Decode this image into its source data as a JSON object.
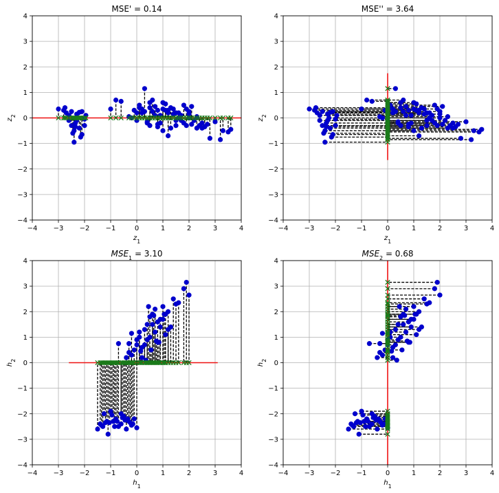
{
  "chart_data": [
    {
      "type": "scatter",
      "panel": "top-left",
      "title": "MSE' = 0.14",
      "xlabel": "z",
      "xlabel_sub": "1",
      "ylabel": "z",
      "ylabel_sub": "2",
      "xlim": [
        -4,
        4
      ],
      "ylim": [
        -4,
        4
      ],
      "xticks": [
        -4,
        -3,
        -2,
        -1,
        0,
        1,
        2,
        3,
        4
      ],
      "yticks": [
        -4,
        -3,
        -2,
        -1,
        0,
        1,
        2,
        3,
        4
      ],
      "grid": true,
      "projection": "horizontal",
      "line": {
        "x": [
          -4,
          4
        ],
        "y": [
          0,
          0
        ]
      },
      "points": {
        "x": [
          -3.0,
          -2.8,
          -2.7,
          -2.6,
          -2.5,
          -2.45,
          -2.4,
          -2.35,
          -2.3,
          -2.25,
          -2.2,
          -2.15,
          -2.1,
          -2.0,
          -1.95,
          -2.4,
          -2.5,
          -2.3,
          -2.2,
          -2.35,
          -2.6,
          -2.75,
          -2.1,
          -2.0,
          -1.0,
          -0.8,
          -0.6,
          -0.2,
          -0.1,
          0.0,
          0.1,
          0.2,
          0.3,
          0.4,
          0.5,
          0.6,
          0.7,
          0.8,
          0.9,
          1.0,
          1.1,
          1.2,
          1.3,
          1.4,
          1.5,
          1.6,
          1.7,
          1.8,
          1.9,
          2.0,
          2.1,
          2.2,
          2.3,
          2.4,
          2.5,
          2.6,
          2.7,
          2.8,
          3.0,
          3.2,
          3.3,
          3.5,
          3.6,
          0.3,
          0.5,
          0.7,
          0.9,
          1.1,
          1.3,
          1.5,
          1.7,
          1.9,
          2.1,
          2.3,
          0.2,
          0.4,
          0.6,
          0.8,
          1.0,
          1.2,
          1.4,
          1.6,
          1.8,
          2.0,
          0.1,
          0.5,
          1.0,
          1.5,
          2.0,
          2.5,
          -0.3,
          0.0,
          0.8,
          1.2
        ],
        "y": [
          0.35,
          0.3,
          0.2,
          0.1,
          -0.3,
          -0.6,
          -0.5,
          -0.2,
          -0.1,
          0.0,
          0.22,
          -0.75,
          -0.65,
          -0.05,
          0.1,
          -0.95,
          0.25,
          0.15,
          -0.4,
          -0.35,
          -0.1,
          0.4,
          0.25,
          -0.3,
          0.35,
          0.7,
          0.65,
          0.0,
          0.3,
          -0.1,
          0.4,
          0.2,
          1.15,
          -0.2,
          0.6,
          0.7,
          0.45,
          0.3,
          0.1,
          0.6,
          0.55,
          -0.7,
          0.4,
          0.35,
          -0.3,
          0.2,
          0.1,
          0.5,
          -0.3,
          0.0,
          0.45,
          -0.1,
          -0.4,
          -0.3,
          -0.2,
          -0.35,
          -0.25,
          -0.8,
          -0.15,
          -0.85,
          -0.5,
          -0.55,
          -0.45,
          0.25,
          0.4,
          0.1,
          -0.2,
          0.3,
          -0.4,
          0.2,
          -0.1,
          0.35,
          -0.25,
          0.05,
          0.35,
          -0.15,
          0.25,
          -0.35,
          -0.5,
          0.2,
          0.15,
          0.0,
          -0.2,
          0.15,
          0.5,
          -0.3,
          0.35,
          -0.1,
          0.25,
          -0.4,
          0.05,
          0.2,
          -0.25,
          0.3
        ]
      }
    },
    {
      "type": "scatter",
      "panel": "top-right",
      "title": "MSE'' = 3.64",
      "xlabel": "z",
      "xlabel_sub": "1",
      "ylabel": "z",
      "ylabel_sub": "2",
      "xlim": [
        -4,
        4
      ],
      "ylim": [
        -4,
        4
      ],
      "xticks": [
        -4,
        -3,
        -2,
        -1,
        0,
        1,
        2,
        3,
        4
      ],
      "yticks": [
        -4,
        -3,
        -2,
        -1,
        0,
        1,
        2,
        3,
        4
      ],
      "grid": true,
      "projection": "vertical",
      "line": {
        "x": [
          0,
          0
        ],
        "y": [
          -1.65,
          1.75
        ]
      },
      "points": {
        "x": [
          -3.0,
          -2.8,
          -2.7,
          -2.6,
          -2.5,
          -2.45,
          -2.4,
          -2.35,
          -2.3,
          -2.25,
          -2.2,
          -2.15,
          -2.1,
          -2.0,
          -1.95,
          -2.4,
          -2.5,
          -2.3,
          -2.2,
          -2.35,
          -2.6,
          -2.75,
          -2.1,
          -2.0,
          -1.0,
          -0.8,
          -0.6,
          -0.2,
          -0.1,
          0.0,
          0.1,
          0.2,
          0.3,
          0.4,
          0.5,
          0.6,
          0.7,
          0.8,
          0.9,
          1.0,
          1.1,
          1.2,
          1.3,
          1.4,
          1.5,
          1.6,
          1.7,
          1.8,
          1.9,
          2.0,
          2.1,
          2.2,
          2.3,
          2.4,
          2.5,
          2.6,
          2.7,
          2.8,
          3.0,
          3.2,
          3.3,
          3.5,
          3.6,
          0.3,
          0.5,
          0.7,
          0.9,
          1.1,
          1.3,
          1.5,
          1.7,
          1.9,
          2.1,
          2.3,
          0.2,
          0.4,
          0.6,
          0.8,
          1.0,
          1.2,
          1.4,
          1.6,
          1.8,
          2.0,
          0.1,
          0.5,
          1.0,
          1.5,
          2.0,
          2.5,
          -0.3,
          0.0,
          0.8,
          1.2
        ],
        "y": [
          0.35,
          0.3,
          0.2,
          0.1,
          -0.3,
          -0.6,
          -0.5,
          -0.2,
          -0.1,
          0.0,
          0.22,
          -0.75,
          -0.65,
          -0.05,
          0.1,
          -0.95,
          0.25,
          0.15,
          -0.4,
          -0.35,
          -0.1,
          0.4,
          0.25,
          -0.3,
          0.35,
          0.7,
          0.65,
          0.0,
          0.3,
          -0.1,
          0.4,
          0.2,
          1.15,
          -0.2,
          0.6,
          0.7,
          0.45,
          0.3,
          0.1,
          0.6,
          0.55,
          -0.7,
          0.4,
          0.35,
          -0.3,
          0.2,
          0.1,
          0.5,
          -0.3,
          0.0,
          0.45,
          -0.1,
          -0.4,
          -0.3,
          -0.2,
          -0.35,
          -0.25,
          -0.8,
          -0.15,
          -0.85,
          -0.5,
          -0.55,
          -0.45,
          0.25,
          0.4,
          0.1,
          -0.2,
          0.3,
          -0.4,
          0.2,
          -0.1,
          0.35,
          -0.25,
          0.05,
          0.35,
          -0.15,
          0.25,
          -0.35,
          -0.5,
          0.2,
          0.15,
          0.0,
          -0.2,
          0.15,
          0.5,
          -0.3,
          0.35,
          -0.1,
          0.25,
          -0.4,
          0.05,
          0.2,
          -0.25,
          0.3
        ]
      }
    },
    {
      "type": "scatter",
      "panel": "bottom-left",
      "title_prefix": "MSE",
      "title_sub": "1",
      "title_suffix": " = 3.10",
      "xlabel": "h",
      "xlabel_sub": "1",
      "ylabel": "h",
      "ylabel_sub": "2",
      "xlim": [
        -4,
        4
      ],
      "ylim": [
        -4,
        4
      ],
      "xticks": [
        -4,
        -3,
        -2,
        -1,
        0,
        1,
        2,
        3,
        4
      ],
      "yticks": [
        -4,
        -3,
        -2,
        -1,
        0,
        1,
        2,
        3,
        4
      ],
      "grid": true,
      "projection": "horizontal",
      "line": {
        "x": [
          -2.6,
          3.1
        ],
        "y": [
          0,
          0
        ]
      },
      "points": {
        "x": [
          -1.5,
          -1.4,
          -1.3,
          -1.2,
          -1.1,
          -1.0,
          -0.9,
          -0.8,
          -0.7,
          -0.6,
          -0.5,
          -0.4,
          -0.3,
          -0.2,
          -0.1,
          0.0,
          -1.35,
          -1.15,
          -0.95,
          -0.75,
          -0.55,
          -0.35,
          -0.15,
          -1.25,
          -0.85,
          -0.45,
          -0.25,
          -0.9,
          -0.6,
          -1.05,
          -0.4,
          -0.3,
          -0.2,
          -0.1,
          0.0,
          0.1,
          0.2,
          0.3,
          0.4,
          0.5,
          0.6,
          0.7,
          0.8,
          0.9,
          1.0,
          1.1,
          1.2,
          1.3,
          1.4,
          1.5,
          1.6,
          1.8,
          1.9,
          2.0,
          0.1,
          0.3,
          0.5,
          0.7,
          0.9,
          1.1,
          -0.3,
          0.0,
          0.2,
          0.4,
          0.6,
          0.8,
          1.0,
          1.2,
          0.45,
          0.65,
          0.85,
          1.05,
          0.15,
          0.35,
          -0.7,
          -0.2,
          0.55,
          0.75
        ],
        "y": [
          -2.6,
          -2.4,
          -2.5,
          -2.35,
          -2.8,
          -1.9,
          -2.3,
          -2.2,
          -2.5,
          -2.4,
          -2.1,
          -2.6,
          -2.3,
          -2.45,
          -2.2,
          -2.55,
          -2.45,
          -2.3,
          -2.05,
          -2.3,
          -2.15,
          -2.2,
          -2.4,
          -2.0,
          -2.5,
          -2.25,
          -2.35,
          -2.3,
          -2.0,
          -2.35,
          0.2,
          0.75,
          0.3,
          0.5,
          0.9,
          1.2,
          0.6,
          0.7,
          1.5,
          1.8,
          1.9,
          2.1,
          1.6,
          1.7,
          2.2,
          1.9,
          2.0,
          1.4,
          2.5,
          2.3,
          2.35,
          2.9,
          3.15,
          2.65,
          1.0,
          1.3,
          1.0,
          1.2,
          1.4,
          1.1,
          0.4,
          0.7,
          0.2,
          0.9,
          1.5,
          0.8,
          1.7,
          1.3,
          2.2,
          1.85,
          0.8,
          1.9,
          0.45,
          0.1,
          0.75,
          1.15,
          0.5,
          0.85
        ]
      }
    },
    {
      "type": "scatter",
      "panel": "bottom-right",
      "title_prefix": "MSE",
      "title_sub": "2",
      "title_suffix": " = 0.68",
      "xlabel": "h",
      "xlabel_sub": "1",
      "ylabel": "h",
      "ylabel_sub": "2",
      "xlim": [
        -4,
        4
      ],
      "ylim": [
        -4,
        4
      ],
      "xticks": [
        -4,
        -3,
        -2,
        -1,
        0,
        1,
        2,
        3,
        4
      ],
      "yticks": [
        -4,
        -3,
        -2,
        -1,
        0,
        1,
        2,
        3,
        4
      ],
      "grid": true,
      "projection": "vertical",
      "line": {
        "x": [
          0,
          0
        ],
        "y": [
          -4,
          4
        ]
      },
      "points": {
        "x": [
          -1.5,
          -1.4,
          -1.3,
          -1.2,
          -1.1,
          -1.0,
          -0.9,
          -0.8,
          -0.7,
          -0.6,
          -0.5,
          -0.4,
          -0.3,
          -0.2,
          -0.1,
          0.0,
          -1.35,
          -1.15,
          -0.95,
          -0.75,
          -0.55,
          -0.35,
          -0.15,
          -1.25,
          -0.85,
          -0.45,
          -0.25,
          -0.9,
          -0.6,
          -1.05,
          -0.4,
          -0.3,
          -0.2,
          -0.1,
          0.0,
          0.1,
          0.2,
          0.3,
          0.4,
          0.5,
          0.6,
          0.7,
          0.8,
          0.9,
          1.0,
          1.1,
          1.2,
          1.3,
          1.4,
          1.5,
          1.6,
          1.8,
          1.9,
          2.0,
          0.1,
          0.3,
          0.5,
          0.7,
          0.9,
          1.1,
          -0.3,
          0.0,
          0.2,
          0.4,
          0.6,
          0.8,
          1.0,
          1.2,
          0.45,
          0.65,
          0.85,
          1.05,
          0.15,
          0.35,
          -0.7,
          -0.2,
          0.55,
          0.75
        ],
        "y": [
          -2.6,
          -2.4,
          -2.5,
          -2.35,
          -2.8,
          -1.9,
          -2.3,
          -2.2,
          -2.5,
          -2.4,
          -2.1,
          -2.6,
          -2.3,
          -2.45,
          -2.2,
          -2.55,
          -2.45,
          -2.3,
          -2.05,
          -2.3,
          -2.15,
          -2.2,
          -2.4,
          -2.0,
          -2.5,
          -2.25,
          -2.35,
          -2.3,
          -2.0,
          -2.35,
          0.2,
          0.75,
          0.3,
          0.5,
          0.9,
          1.2,
          0.6,
          0.7,
          1.5,
          1.8,
          1.9,
          2.1,
          1.6,
          1.7,
          2.2,
          1.9,
          2.0,
          1.4,
          2.5,
          2.3,
          2.35,
          2.9,
          3.15,
          2.65,
          1.0,
          1.3,
          1.0,
          1.2,
          1.4,
          1.1,
          0.4,
          0.7,
          0.2,
          0.9,
          1.5,
          0.8,
          1.7,
          1.3,
          2.2,
          1.85,
          0.8,
          1.9,
          0.45,
          0.1,
          0.75,
          1.15,
          0.5,
          0.85
        ]
      }
    }
  ],
  "colors": {
    "point": "#0000cc",
    "projected": "#1a7a1a",
    "line": "#ee1111",
    "connector": "#000000",
    "grid": "#b0b0b0"
  }
}
